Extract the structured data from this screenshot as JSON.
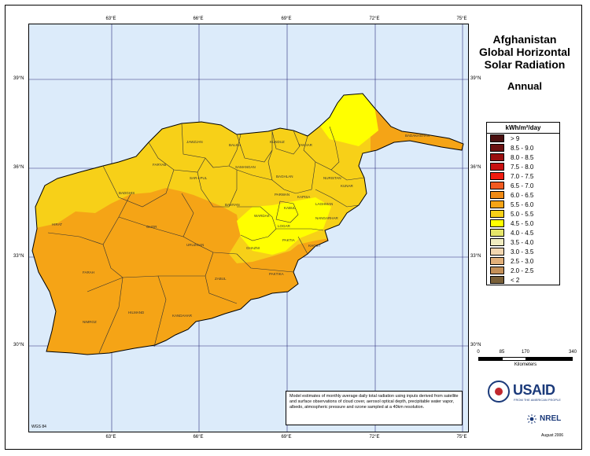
{
  "title": "Afghanistan Global Horizontal Solar Radiation",
  "title_lines": [
    "Afghanistan",
    "Global Horizontal",
    "Solar Radiation"
  ],
  "subtitle": "Annual",
  "lon_labels": [
    "63°E",
    "66°E",
    "69°E",
    "72°E",
    "75°E"
  ],
  "lat_labels": [
    "39°N",
    "36°N",
    "33°N",
    "30°N"
  ],
  "provinces": [
    "BADAKHSHAN",
    "JAWZJAN",
    "BALKH",
    "KUNDUZ",
    "TAKHAR",
    "FARYAB",
    "SAMANGAN",
    "SAR-I-PUL",
    "BAGHLAN",
    "NURISTAN",
    "KUNAR",
    "BADGHIS",
    "PARWAN",
    "KAPISA",
    "LAGHMAN",
    "BAMYAN",
    "KABUL",
    "WARDAK",
    "NANGARHAR",
    "HIRAT",
    "GHOR",
    "LOGAR",
    "PAKTIA",
    "KHOST",
    "URUZGAN",
    "GHAZNI",
    "FARAH",
    "PAKTIKA",
    "ZABUL",
    "HILMAND",
    "KANDAHAR",
    "NIMROZ"
  ],
  "legend": {
    "heading": "kWh/m²/day",
    "classes": [
      {
        "label": "> 9",
        "color": "#4a0f0f"
      },
      {
        "label": "8.5 - 9.0",
        "color": "#6b1010"
      },
      {
        "label": "8.0 - 8.5",
        "color": "#9a0f0f"
      },
      {
        "label": "7.5 - 8.0",
        "color": "#c81010"
      },
      {
        "label": "7.0 - 7.5",
        "color": "#f01c10"
      },
      {
        "label": "6.5 - 7.0",
        "color": "#f25a20"
      },
      {
        "label": "6.0 - 6.5",
        "color": "#f08a14"
      },
      {
        "label": "5.5 - 6.0",
        "color": "#f5a416"
      },
      {
        "label": "5.0 - 5.5",
        "color": "#f7d018"
      },
      {
        "label": "4.5 - 5.0",
        "color": "#ffff00"
      },
      {
        "label": "4.0 - 4.5",
        "color": "#e6e66a"
      },
      {
        "label": "3.5 - 4.0",
        "color": "#f0ecc0"
      },
      {
        "label": "3.0 - 3.5",
        "color": "#f2d6b0"
      },
      {
        "label": "2.5 - 3.0",
        "color": "#e2b07a"
      },
      {
        "label": "2.0 - 2.5",
        "color": "#c49058"
      },
      {
        "label": "< 2",
        "color": "#7a6038"
      }
    ]
  },
  "scale": {
    "ticks": [
      "0",
      "85",
      "170",
      "340"
    ],
    "unit": "Kilometers"
  },
  "datum": "WGS 84",
  "note": "Model estimates of monthly average daily total radiation using inputs derived from satellite and surface observations of cloud cover, aerosol optical depth, precipitable water vapor, albedo, atmospheric pressure and ozone sampled at a 40km resolution.",
  "logos": {
    "usaid": "USAID",
    "usaid_tagline": "FROM THE AMERICAN PEOPLE",
    "nrel": "NREL"
  },
  "date": "August 2006",
  "colors": {
    "ocean": "#dcebfa",
    "grid": "#2a2a7a",
    "zone_high": "#f5a416",
    "zone_mid": "#f7d018",
    "zone_low": "#ffff00"
  }
}
